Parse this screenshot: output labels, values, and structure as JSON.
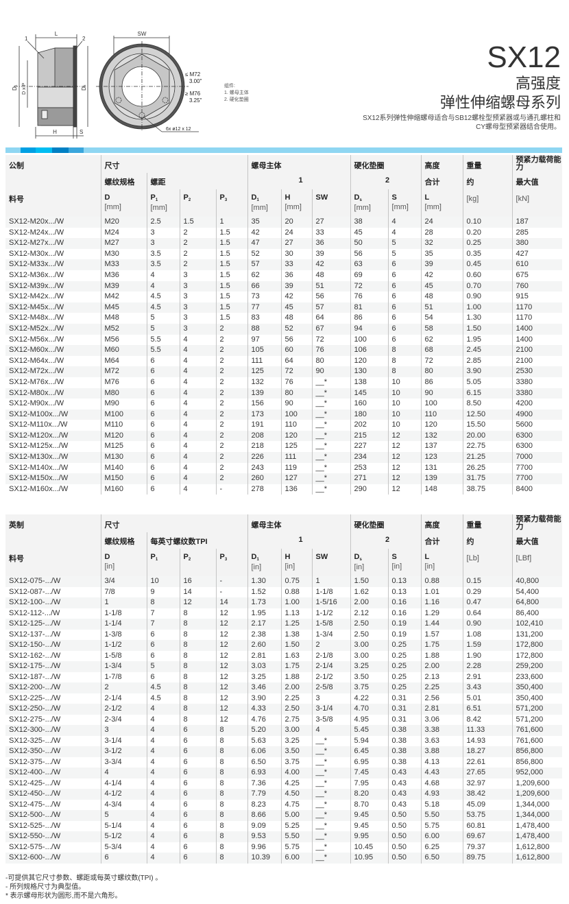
{
  "header": {
    "title": "SX12",
    "subtitle1": "高强度",
    "subtitle2": "弹性伸缩螺母系列",
    "description_line1": "SX12系列弹性伸缩螺母适合与SB12螺栓型预紧器或与通孔螺柱和",
    "description_line2": "CY螺母型预紧器结合使用。"
  },
  "drawing": {
    "label_1": "1",
    "label_2": "2",
    "label_L": "L",
    "label_SW": "SW",
    "label_D1": "D₁",
    "label_DxP": "D x P",
    "label_Ds": "Dₛ",
    "label_H": "H",
    "label_S": "S",
    "le_m72": "≤ M72",
    "in_300": "3.00\"",
    "ge_m76": "≥ M76",
    "in_325": "3.25\"",
    "holes": "6x  ø12 x 12",
    "legend_title": "组件:",
    "legend_1": "1. 螺母主体",
    "legend_2": "2. 硬化垫圈"
  },
  "colors": {
    "band": "#8fd6f2",
    "band_blocks": [
      "#00a0e3",
      "#00bdf2",
      "#0080c4",
      "#3aa6dc"
    ],
    "row_alt": "#f4f5f5",
    "header_bg": "#f3f3f3"
  },
  "metric": {
    "h_system": "公制",
    "h_dimensions": "尺寸",
    "h_body": "螺母主体",
    "h_washer": "硬化垫圈",
    "h_height": "高度",
    "h_weight": "重量",
    "h_load": "预紧力载荷能力",
    "h_thread": "螺纹规格",
    "h_pitch": "螺距",
    "h_body_no": "1",
    "h_washer_no": "2",
    "h_total": "合计",
    "h_approx": "约",
    "h_max": "最大值",
    "columns": [
      {
        "sym": "料号",
        "sub": "",
        "unit": ""
      },
      {
        "sym": "D",
        "sub": "",
        "unit": "[mm]"
      },
      {
        "sym": "P",
        "sub": "1",
        "unit": "[mm]"
      },
      {
        "sym": "P",
        "sub": "2",
        "unit": ""
      },
      {
        "sym": "P",
        "sub": "3",
        "unit": ""
      },
      {
        "sym": "D",
        "sub": "1",
        "unit": "[mm]"
      },
      {
        "sym": "H",
        "sub": "",
        "unit": "[mm]"
      },
      {
        "sym": "SW",
        "sub": "",
        "unit": ""
      },
      {
        "sym": "D",
        "sub": "s",
        "unit": "[mm]"
      },
      {
        "sym": "S",
        "sub": "",
        "unit": "[mm]"
      },
      {
        "sym": "L",
        "sub": "",
        "unit": "[mm]"
      },
      {
        "sym": "",
        "sub": "",
        "unit": "[kg]"
      },
      {
        "sym": "",
        "sub": "",
        "unit": "[kN]"
      }
    ],
    "rows": [
      [
        "SX12-M20x.../W",
        "M20",
        "2.5",
        "1.5",
        "1",
        "35",
        "20",
        "27",
        "38",
        "4",
        "24",
        "0.10",
        "187"
      ],
      [
        "SX12-M24x.../W",
        "M24",
        "3",
        "2",
        "1.5",
        "42",
        "24",
        "33",
        "45",
        "4",
        "28",
        "0.20",
        "285"
      ],
      [
        "SX12-M27x.../W",
        "M27",
        "3",
        "2",
        "1.5",
        "47",
        "27",
        "36",
        "50",
        "5",
        "32",
        "0.25",
        "380"
      ],
      [
        "SX12-M30x.../W",
        "M30",
        "3.5",
        "2",
        "1.5",
        "52",
        "30",
        "39",
        "56",
        "5",
        "35",
        "0.35",
        "427"
      ],
      [
        "SX12-M33x.../W",
        "M33",
        "3.5",
        "2",
        "1.5",
        "57",
        "33",
        "42",
        "63",
        "6",
        "39",
        "0.45",
        "610"
      ],
      [
        "SX12-M36x.../W",
        "M36",
        "4",
        "3",
        "1.5",
        "62",
        "36",
        "48",
        "69",
        "6",
        "42",
        "0.60",
        "675"
      ],
      [
        "SX12-M39x.../W",
        "M39",
        "4",
        "3",
        "1.5",
        "66",
        "39",
        "51",
        "72",
        "6",
        "45",
        "0.70",
        "760"
      ],
      [
        "SX12-M42x.../W",
        "M42",
        "4.5",
        "3",
        "1.5",
        "73",
        "42",
        "56",
        "76",
        "6",
        "48",
        "0.90",
        "915"
      ],
      [
        "SX12-M45x.../W",
        "M45",
        "4.5",
        "3",
        "1.5",
        "77",
        "45",
        "57",
        "81",
        "6",
        "51",
        "1.00",
        "1170"
      ],
      [
        "SX12-M48x.../W",
        "M48",
        "5",
        "3",
        "1.5",
        "83",
        "48",
        "64",
        "86",
        "6",
        "54",
        "1.30",
        "1170"
      ],
      [
        "SX12-M52x.../W",
        "M52",
        "5",
        "3",
        "2",
        "88",
        "52",
        "67",
        "94",
        "6",
        "58",
        "1.50",
        "1400"
      ],
      [
        "SX12-M56x.../W",
        "M56",
        "5.5",
        "4",
        "2",
        "97",
        "56",
        "72",
        "100",
        "6",
        "62",
        "1.95",
        "1400"
      ],
      [
        "SX12-M60x.../W",
        "M60",
        "5.5",
        "4",
        "2",
        "105",
        "60",
        "76",
        "106",
        "8",
        "68",
        "2.45",
        "2100"
      ],
      [
        "SX12-M64x.../W",
        "M64",
        "6",
        "4",
        "2",
        "111",
        "64",
        "80",
        "120",
        "8",
        "72",
        "2.85",
        "2100"
      ],
      [
        "SX12-M72x.../W",
        "M72",
        "6",
        "4",
        "2",
        "125",
        "72",
        "90",
        "130",
        "8",
        "80",
        "3.90",
        "2530"
      ],
      [
        "SX12-M76x.../W",
        "M76",
        "6",
        "4",
        "2",
        "132",
        "76",
        "__*",
        "138",
        "10",
        "86",
        "5.05",
        "3380"
      ],
      [
        "SX12-M80x.../W",
        "M80",
        "6",
        "4",
        "2",
        "139",
        "80",
        "__*",
        "145",
        "10",
        "90",
        "6.15",
        "3380"
      ],
      [
        "SX12-M90x.../W",
        "M90",
        "6",
        "4",
        "2",
        "156",
        "90",
        "__*",
        "160",
        "10",
        "100",
        "8.50",
        "4200"
      ],
      [
        "SX12-M100x.../W",
        "M100",
        "6",
        "4",
        "2",
        "173",
        "100",
        "__*",
        "180",
        "10",
        "110",
        "12.50",
        "4900"
      ],
      [
        "SX12-M110x.../W",
        "M110",
        "6",
        "4",
        "2",
        "191",
        "110",
        "__*",
        "202",
        "10",
        "120",
        "15.50",
        "5600"
      ],
      [
        "SX12-M120x.../W",
        "M120",
        "6",
        "4",
        "2",
        "208",
        "120",
        "__*",
        "215",
        "12",
        "132",
        "20.00",
        "6300"
      ],
      [
        "SX12-M125x.../W",
        "M125",
        "6",
        "4",
        "2",
        "218",
        "125",
        "__*",
        "227",
        "12",
        "137",
        "22.75",
        "6300"
      ],
      [
        "SX12-M130x.../W",
        "M130",
        "6",
        "4",
        "2",
        "226",
        "111",
        "__*",
        "234",
        "12",
        "123",
        "21.25",
        "7000"
      ],
      [
        "SX12-M140x.../W",
        "M140",
        "6",
        "4",
        "2",
        "243",
        "119",
        "__*",
        "253",
        "12",
        "131",
        "26.25",
        "7700"
      ],
      [
        "SX12-M150x.../W",
        "M150",
        "6",
        "4",
        "2",
        "260",
        "127",
        "__*",
        "271",
        "12",
        "139",
        "31.75",
        "7700"
      ],
      [
        "SX12-M160x.../W",
        "M160",
        "6",
        "4",
        "-",
        "278",
        "136",
        "__*",
        "290",
        "12",
        "148",
        "38.75",
        "8400"
      ]
    ]
  },
  "imperial": {
    "h_system": "英制",
    "h_dimensions": "尺寸",
    "h_body": "螺母主体",
    "h_washer": "硬化垫圈",
    "h_height": "高度",
    "h_weight": "重量",
    "h_load": "预紧力载荷能力",
    "h_thread": "螺纹规格",
    "h_pitch": "每英寸螺纹数TPI",
    "h_body_no": "1",
    "h_washer_no": "2",
    "h_total": "合计",
    "h_approx": "约",
    "h_max": "最大值",
    "columns": [
      {
        "sym": "料号",
        "sub": "",
        "unit": ""
      },
      {
        "sym": "D",
        "sub": "",
        "unit": "[in]"
      },
      {
        "sym": "P",
        "sub": "1",
        "unit": ""
      },
      {
        "sym": "P",
        "sub": "2",
        "unit": ""
      },
      {
        "sym": "P",
        "sub": "3",
        "unit": ""
      },
      {
        "sym": "D",
        "sub": "1",
        "unit": "[in]"
      },
      {
        "sym": "H",
        "sub": "",
        "unit": "[in]"
      },
      {
        "sym": "SW",
        "sub": "",
        "unit": ""
      },
      {
        "sym": "D",
        "sub": "s",
        "unit": "[in]"
      },
      {
        "sym": "S",
        "sub": "",
        "unit": "[in]"
      },
      {
        "sym": "L",
        "sub": "",
        "unit": "[in]"
      },
      {
        "sym": "",
        "sub": "",
        "unit": "[Lb]"
      },
      {
        "sym": "",
        "sub": "",
        "unit": "[LBf]"
      }
    ],
    "rows": [
      [
        "SX12-075-.../W",
        " 3/4",
        "10",
        "16",
        "-",
        "1.30",
        "0.75",
        "1",
        "1.50",
        "0.13",
        "0.88",
        "0.15",
        "40,800"
      ],
      [
        "SX12-087-.../W",
        " 7/8",
        "9",
        "14",
        "-",
        "1.52",
        "0.88",
        "1-1/8",
        "1.62",
        "0.13",
        "1.01",
        "0.29",
        "54,400"
      ],
      [
        "SX12-100-.../W",
        "1",
        "8",
        "12",
        "14",
        "1.73",
        "1.00",
        "1-5/16",
        "2.00",
        "0.16",
        "1.16",
        "0.47",
        "64,800"
      ],
      [
        "SX12-112-.../W",
        "1-1/8",
        "7",
        "8",
        "12",
        "1.95",
        "1.13",
        "1-1/2",
        "2.12",
        "0.16",
        "1.29",
        "0.64",
        "86,400"
      ],
      [
        "SX12-125-.../W",
        "1-1/4",
        "7",
        "8",
        "12",
        "2.17",
        "1.25",
        "1-5/8",
        "2.50",
        "0.19",
        "1.44",
        "0.90",
        "102,410"
      ],
      [
        "SX12-137-.../W",
        "1-3/8",
        "6",
        "8",
        "12",
        "2.38",
        "1.38",
        "1-3/4",
        "2.50",
        "0.19",
        "1.57",
        "1.08",
        "131,200"
      ],
      [
        "SX12-150-.../W",
        "1-1/2",
        "6",
        "8",
        "12",
        "2.60",
        "1.50",
        "2",
        "3.00",
        "0.25",
        "1.75",
        "1.59",
        "172,800"
      ],
      [
        "SX12-162-.../W",
        "1-5/8",
        "6",
        "8",
        "12",
        "2.81",
        "1.63",
        "2-1/8",
        "3.00",
        "0.25",
        "1.88",
        "1.90",
        "172,800"
      ],
      [
        "SX12-175-.../W",
        "1-3/4",
        "5",
        "8",
        "12",
        "3.03",
        "1.75",
        "2-1/4",
        "3.25",
        "0.25",
        "2.00",
        "2.28",
        "259,200"
      ],
      [
        "SX12-187-.../W",
        "1-7/8",
        "6",
        "8",
        "12",
        "3.25",
        "1.88",
        "2-1/2",
        "3.50",
        "0.25",
        "2.13",
        "2.91",
        "233,600"
      ],
      [
        "SX12-200-.../W",
        "2",
        "4.5",
        "8",
        "12",
        "3.46",
        "2.00",
        "2-5/8",
        "3.75",
        "0.25",
        "2.25",
        "3.43",
        "350,400"
      ],
      [
        "SX12-225-.../W",
        "2-1/4",
        "4.5",
        "8",
        "12",
        "3.90",
        "2.25",
        "3",
        "4.22",
        "0.31",
        "2.56",
        "5.01",
        "350,400"
      ],
      [
        "SX12-250-.../W",
        "2-1/2",
        "4",
        "8",
        "12",
        "4.33",
        "2.50",
        "3-1/4",
        "4.70",
        "0.31",
        "2.81",
        "6.51",
        "571,200"
      ],
      [
        "SX12-275-.../W",
        "2-3/4",
        "4",
        "8",
        "12",
        "4.76",
        "2.75",
        "3-5/8",
        "4.95",
        "0.31",
        "3.06",
        "8.42",
        "571,200"
      ],
      [
        "SX12-300-.../W",
        "3",
        "4",
        "6",
        "8",
        "5.20",
        "3.00",
        "4",
        "5.45",
        "0.38",
        "3.38",
        "11.33",
        "761,600"
      ],
      [
        "SX12-325-.../W",
        "3-1/4",
        "4",
        "6",
        "8",
        "5.63",
        "3.25",
        "__*",
        "5.94",
        "0.38",
        "3.63",
        "14.93",
        "761,600"
      ],
      [
        "SX12-350-.../W",
        "3-1/2",
        "4",
        "6",
        "8",
        "6.06",
        "3.50",
        "__*",
        "6.45",
        "0.38",
        "3.88",
        "18.27",
        "856,800"
      ],
      [
        "SX12-375-.../W",
        "3-3/4",
        "4",
        "6",
        "8",
        "6.50",
        "3.75",
        "__*",
        "6.95",
        "0.38",
        "4.13",
        "22.61",
        "856,800"
      ],
      [
        "SX12-400-.../W",
        "4",
        "4",
        "6",
        "8",
        "6.93",
        "4.00",
        "__*",
        "7.45",
        "0.43",
        "4.43",
        "27.65",
        "952,000"
      ],
      [
        "SX12-425-.../W",
        "4-1/4",
        "4",
        "6",
        "8",
        "7.36",
        "4.25",
        "__*",
        "7.95",
        "0.43",
        "4.68",
        "32.97",
        "1,209,600"
      ],
      [
        "SX12-450-.../W",
        "4-1/2",
        "4",
        "6",
        "8",
        "7.79",
        "4.50",
        "__*",
        "8.20",
        "0.43",
        "4.93",
        "38.42",
        "1,209,600"
      ],
      [
        "SX12-475-.../W",
        "4-3/4",
        "4",
        "6",
        "8",
        "8.23",
        "4.75",
        "__*",
        "8.70",
        "0.43",
        "5.18",
        "45.09",
        "1,344,000"
      ],
      [
        "SX12-500-.../W",
        "5",
        "4",
        "6",
        "8",
        "8.66",
        "5.00",
        "__*",
        "9.45",
        "0.50",
        "5.50",
        "53.75",
        "1,344,000"
      ],
      [
        "SX12-525-.../W",
        "5-1/4",
        "4",
        "6",
        "8",
        "9.09",
        "5.25",
        "__*",
        "9.45",
        "0.50",
        "5.75",
        "60.81",
        "1,478,400"
      ],
      [
        "SX12-550-.../W",
        "5-1/2",
        "4",
        "6",
        "8",
        "9.53",
        "5.50",
        "__*",
        "9.95",
        "0.50",
        "6.00",
        "69.67",
        "1,478,400"
      ],
      [
        "SX12-575-.../W",
        "5-3/4",
        "4",
        "6",
        "8",
        "9.96",
        "5.75",
        "__*",
        "10.45",
        "0.50",
        "6.25",
        "79.37",
        "1,612,800"
      ],
      [
        "SX12-600-.../W",
        "6",
        "4",
        "6",
        "8",
        "10.39",
        "6.00",
        "__*",
        "10.95",
        "0.50",
        "6.50",
        "89.75",
        "1,612,800"
      ]
    ]
  },
  "notes": [
    "-可提供其它尺寸参数、螺距或每英寸螺纹数(TPI) 。",
    "- 所列规格尺寸为典型值。",
    "* 表示螺母形状为圆形,而不是六角形。"
  ]
}
